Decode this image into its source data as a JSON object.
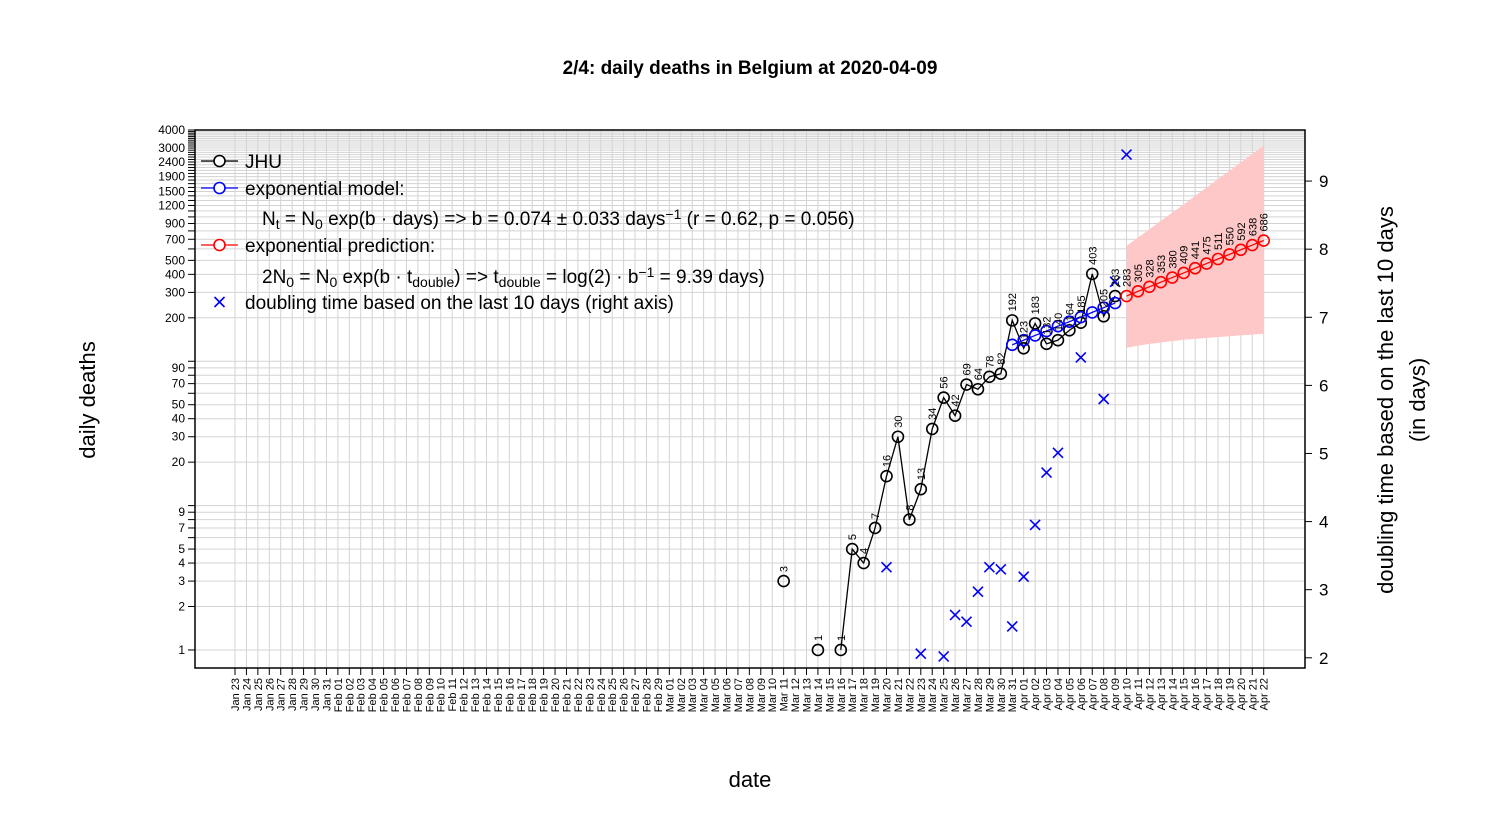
{
  "chart_data": {
    "type": "line",
    "title": "2/4: daily deaths in Belgium at 2020-04-09",
    "xlabel": "date",
    "ylabel": "daily deaths",
    "y2label_line1": "doubling time based on the last 10 days",
    "y2label_line2": "(in days)",
    "y_scale": "log",
    "ylim": [
      0.75,
      4000
    ],
    "y_ticks": [
      1,
      2,
      3,
      4,
      5,
      7,
      9,
      20,
      30,
      40,
      50,
      70,
      90,
      200,
      300,
      400,
      500,
      700,
      900,
      1200,
      1500,
      1900,
      2400,
      3000,
      4000
    ],
    "y_minor_ticks": [
      6,
      8,
      10,
      60,
      80,
      100,
      600,
      800,
      1000,
      1100,
      1300,
      1400,
      1600,
      1700,
      1800,
      2000,
      2100,
      2200,
      2300,
      2500,
      2600,
      2700,
      2800,
      2900,
      3100,
      3200,
      3300,
      3400,
      3500,
      3600,
      3700,
      3800,
      3900
    ],
    "y2lim": [
      1.85,
      9.75
    ],
    "y2_ticks": [
      2,
      3,
      4,
      5,
      6,
      7,
      8,
      9
    ],
    "x_categories": [
      "Jan 23",
      "Jan 24",
      "Jan 25",
      "Jan 26",
      "Jan 27",
      "Jan 28",
      "Jan 29",
      "Jan 30",
      "Jan 31",
      "Feb 01",
      "Feb 02",
      "Feb 03",
      "Feb 04",
      "Feb 05",
      "Feb 06",
      "Feb 07",
      "Feb 08",
      "Feb 09",
      "Feb 10",
      "Feb 11",
      "Feb 12",
      "Feb 13",
      "Feb 14",
      "Feb 15",
      "Feb 16",
      "Feb 17",
      "Feb 18",
      "Feb 19",
      "Feb 20",
      "Feb 21",
      "Feb 22",
      "Feb 23",
      "Feb 24",
      "Feb 25",
      "Feb 26",
      "Feb 27",
      "Feb 28",
      "Feb 29",
      "Mar 01",
      "Mar 02",
      "Mar 03",
      "Mar 04",
      "Mar 05",
      "Mar 06",
      "Mar 07",
      "Mar 08",
      "Mar 09",
      "Mar 10",
      "Mar 11",
      "Mar 12",
      "Mar 13",
      "Mar 14",
      "Mar 15",
      "Mar 16",
      "Mar 17",
      "Mar 18",
      "Mar 19",
      "Mar 20",
      "Mar 21",
      "Mar 22",
      "Mar 23",
      "Mar 24",
      "Mar 25",
      "Mar 26",
      "Mar 27",
      "Mar 28",
      "Mar 29",
      "Mar 30",
      "Mar 31",
      "Apr 01",
      "Apr 02",
      "Apr 03",
      "Apr 04",
      "Apr 05",
      "Apr 06",
      "Apr 07",
      "Apr 08",
      "Apr 09",
      "Apr 10",
      "Apr 11",
      "Apr 12",
      "Apr 13",
      "Apr 14",
      "Apr 15",
      "Apr 16",
      "Apr 17",
      "Apr 18",
      "Apr 19",
      "Apr 20",
      "Apr 21",
      "Apr 22"
    ],
    "series": [
      {
        "name": "JHU",
        "color": "#000000",
        "points": [
          {
            "x": "Mar 11",
            "y": 3,
            "label": "3",
            "connected": false
          },
          {
            "x": "Mar 14",
            "y": 1,
            "label": "1",
            "connected": false
          },
          {
            "x": "Mar 16",
            "y": 1,
            "label": "1",
            "connected": true
          },
          {
            "x": "Mar 17",
            "y": 5,
            "label": "5",
            "connected": true
          },
          {
            "x": "Mar 18",
            "y": 4,
            "label": "4",
            "connected": true
          },
          {
            "x": "Mar 19",
            "y": 7,
            "label": "7",
            "connected": true
          },
          {
            "x": "Mar 20",
            "y": 16,
            "label": "16",
            "connected": true
          },
          {
            "x": "Mar 21",
            "y": 30,
            "label": "30",
            "connected": true
          },
          {
            "x": "Mar 22",
            "y": 8,
            "label": "8",
            "connected": true
          },
          {
            "x": "Mar 23",
            "y": 13,
            "label": "13",
            "connected": true
          },
          {
            "x": "Mar 24",
            "y": 34,
            "label": "34",
            "connected": true
          },
          {
            "x": "Mar 25",
            "y": 56,
            "label": "56",
            "connected": true
          },
          {
            "x": "Mar 26",
            "y": 42,
            "label": "42",
            "connected": true
          },
          {
            "x": "Mar 27",
            "y": 69,
            "label": "69",
            "connected": true
          },
          {
            "x": "Mar 28",
            "y": 64,
            "label": "64",
            "connected": true
          },
          {
            "x": "Mar 29",
            "y": 78,
            "label": "78",
            "connected": true
          },
          {
            "x": "Mar 30",
            "y": 82,
            "label": "82",
            "connected": true
          },
          {
            "x": "Mar 31",
            "y": 192,
            "label": "192",
            "connected": true
          },
          {
            "x": "Apr 01",
            "y": 123,
            "label": "123",
            "connected": true
          },
          {
            "x": "Apr 02",
            "y": 183,
            "label": "183",
            "connected": true
          },
          {
            "x": "Apr 03",
            "y": 132,
            "label": "132",
            "connected": true
          },
          {
            "x": "Apr 04",
            "y": 140,
            "label": "140",
            "connected": true
          },
          {
            "x": "Apr 05",
            "y": 164,
            "label": "164",
            "connected": true
          },
          {
            "x": "Apr 06",
            "y": 185,
            "label": "185",
            "connected": true
          },
          {
            "x": "Apr 07",
            "y": 403,
            "label": "403",
            "connected": true
          },
          {
            "x": "Apr 08",
            "y": 205,
            "label": "205",
            "connected": true
          },
          {
            "x": "Apr 09",
            "y": 283,
            "label": "283",
            "connected": true
          }
        ]
      },
      {
        "name": "exponential model:",
        "color": "#0000ff",
        "x": [
          "Mar 31",
          "Apr 01",
          "Apr 02",
          "Apr 03",
          "Apr 04",
          "Apr 05",
          "Apr 06",
          "Apr 07",
          "Apr 08",
          "Apr 09"
        ],
        "values": [
          130,
          140,
          151,
          162,
          175,
          188,
          202,
          218,
          235,
          253
        ]
      },
      {
        "name": "exponential prediction:",
        "color": "#ff0000",
        "x": [
          "Apr 10",
          "Apr 11",
          "Apr 12",
          "Apr 13",
          "Apr 14",
          "Apr 15",
          "Apr 16",
          "Apr 17",
          "Apr 18",
          "Apr 19",
          "Apr 20",
          "Apr 21",
          "Apr 22"
        ],
        "values": [
          283,
          305,
          328,
          353,
          380,
          409,
          441,
          475,
          511,
          550,
          592,
          638,
          686
        ],
        "labels": [
          "283",
          "305",
          "328",
          "353",
          "380",
          "409",
          "441",
          "475",
          "511",
          "550",
          "592",
          "638",
          "686"
        ],
        "band_upper": [
          630,
          720,
          820,
          940,
          1070,
          1220,
          1400,
          1600,
          1830,
          2090,
          2390,
          2730,
          3120
        ],
        "band_lower": [
          124,
          128,
          132,
          135,
          138,
          141,
          143,
          145,
          147,
          149,
          151,
          153,
          155
        ],
        "band_color": "#ffc8c8"
      },
      {
        "name": "doubling time based on the last  10  days (right axis)",
        "color": "#0000ff",
        "marker": "x",
        "axis": "right",
        "x": [
          "Mar 20",
          "Mar 23",
          "Mar 25",
          "Mar 26",
          "Mar 27",
          "Mar 28",
          "Mar 29",
          "Mar 30",
          "Mar 31",
          "Apr 01",
          "Apr 02",
          "Apr 03",
          "Apr 04",
          "Apr 06",
          "Apr 08",
          "Apr 09",
          "Apr 10"
        ],
        "values": [
          3.33,
          2.06,
          2.02,
          2.63,
          2.53,
          2.97,
          3.33,
          3.3,
          2.46,
          3.19,
          3.95,
          4.72,
          5.01,
          6.41,
          5.8,
          7.52,
          9.39
        ]
      }
    ],
    "legend": {
      "placement": "top-left",
      "entries": [
        {
          "text": "JHU",
          "color": "#000000",
          "marker": "line-circle"
        },
        {
          "text": "exponential model:",
          "color": "#0000ff",
          "marker": "line-circle"
        },
        {
          "text": "exponential prediction:",
          "color": "#ff0000",
          "marker": "line-circle"
        },
        {
          "text": "doubling time based on the last  10  days (right axis)",
          "color": "#0000ff",
          "marker": "x"
        }
      ],
      "formula1": {
        "a": "N",
        "a_sub": "t",
        "b": " = N",
        "b_sub": "0",
        "c": " exp(b · days) => b = 0.074 ± 0.033 days",
        "c_sup": "−1",
        "d": "  (r = 0.62, p = 0.056)"
      },
      "formula2": {
        "a": "2N",
        "a_sub": "0",
        "b": " = N",
        "b_sub": "0",
        "c": " exp(b · t",
        "c_sub": "double",
        "d": ") => t",
        "d_sub": "double",
        "e": " = log(2) · b",
        "e_sup": "−1",
        "f": " = 9.39 days)"
      }
    },
    "grid": true
  }
}
